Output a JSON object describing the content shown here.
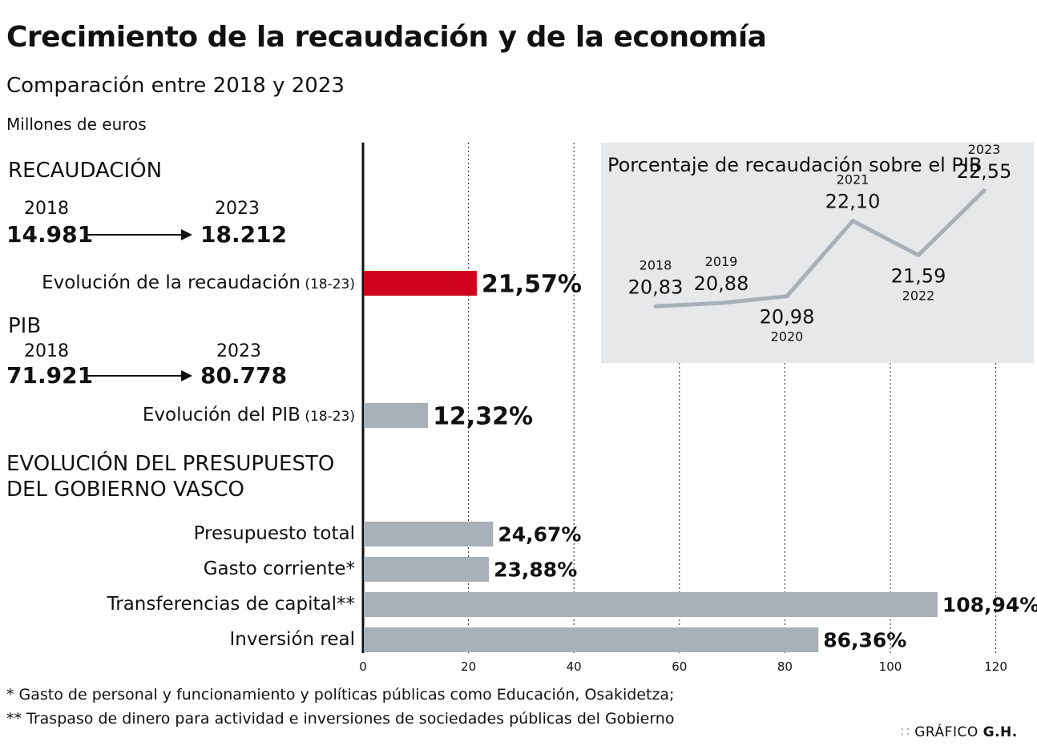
{
  "header": {
    "title": "Crecimiento de la recaudación y de la economía",
    "subtitle": "Comparación entre 2018 y 2023",
    "units": "Millones de euros"
  },
  "recaudacion": {
    "heading": "RECAUDACIÓN",
    "year_start": "2018",
    "year_end": "2023",
    "value_start": "14.981",
    "value_end": "18.212"
  },
  "pib": {
    "heading": "PIB",
    "year_start": "2018",
    "year_end": "2023",
    "value_start": "71.921",
    "value_end": "80.778"
  },
  "presupuesto": {
    "heading_line1": "EVOLUCIÓN DEL PRESUPUESTO",
    "heading_line2": "DEL GOBIERNO VASCO"
  },
  "footnotes": {
    "note1": "* Gasto de personal y funcionamiento y políticas públicas como Educación, Osakidetza;",
    "note2": "** Traspaso de dinero para actividad e inversiones de sociedades públicas del Gobierno"
  },
  "credit": {
    "prefix": "GRÁFICO",
    "name": "G.H."
  },
  "colors": {
    "highlight": "#d0021b",
    "bar": "#a9b0b7",
    "inset_bg": "#e6e8ea",
    "inset_line": "#a9b0b7"
  },
  "chart_data": [
    {
      "type": "bar",
      "orientation": "horizontal",
      "categories": [
        {
          "label": "Evolución de la recaudación",
          "note": "(18-23)"
        },
        {
          "label": "Evolución del PIB",
          "note": "(18-23)"
        },
        {
          "label": "Presupuesto total",
          "note": ""
        },
        {
          "label": "Gasto corriente*",
          "note": ""
        },
        {
          "label": "Transferencias de capital**",
          "note": ""
        },
        {
          "label": "Inversión real",
          "note": ""
        }
      ],
      "values": [
        21.57,
        12.32,
        24.67,
        23.88,
        108.94,
        86.36
      ],
      "value_labels": [
        "21,57%",
        "12,32%",
        "24,67%",
        "23,88%",
        "108,94%",
        "86,36%"
      ],
      "highlight_index": 0,
      "xlim": [
        0,
        120
      ],
      "xticks": [
        0,
        20,
        40,
        60,
        80,
        100,
        120
      ],
      "grid": "dashed-vertical"
    },
    {
      "type": "line",
      "title": "Porcentaje de recaudación sobre el PIB",
      "x": [
        "2018",
        "2019",
        "2020",
        "2021",
        "2022",
        "2023"
      ],
      "values": [
        20.83,
        20.88,
        20.98,
        22.1,
        21.59,
        22.55
      ],
      "value_labels": [
        "20,83",
        "20,88",
        "20,98",
        "22,10",
        "21,59",
        "22,55"
      ],
      "label_positions": [
        "above",
        "above",
        "below",
        "above",
        "below",
        "above"
      ]
    }
  ]
}
